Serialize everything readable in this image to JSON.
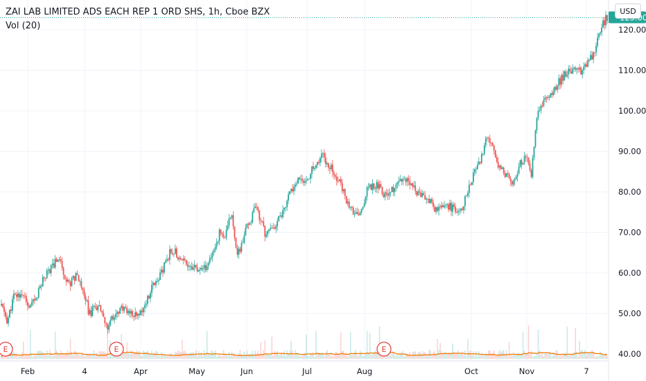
{
  "legend": {
    "title": "ZAI LAB LIMITED ADS EACH REP 1 ORD SHS, 1h, Cboe BZX",
    "volume": "Vol (20)"
  },
  "currency": "USD",
  "last_price_label": "123.00",
  "colors": {
    "up": "#26a69a",
    "down": "#ef5350",
    "grid": "#f0f3fa",
    "volume_ma": "#f57c00",
    "earnings": "#e53935",
    "last_price": "#26a69a"
  },
  "chart_data": {
    "type": "candlestick",
    "title": "ZAI LAB LIMITED ADS EACH REP 1 ORD SHS, 1h, Cboe BZX",
    "y_axis": {
      "min": 40,
      "max": 120,
      "ticks": [
        "40.00",
        "50.00",
        "60.00",
        "70.00",
        "80.00",
        "90.00",
        "100.00",
        "110.00",
        "120.00"
      ],
      "side": "right"
    },
    "x_axis": {
      "ticks": [
        "Feb",
        "4",
        "Apr",
        "May",
        "Jun",
        "Jul",
        "Aug",
        "Oct",
        "Nov",
        "7"
      ]
    },
    "last_price": 123.0,
    "price_path": [
      [
        0,
        52
      ],
      [
        0.01,
        48
      ],
      [
        0.02,
        54
      ],
      [
        0.035,
        55
      ],
      [
        0.045,
        51
      ],
      [
        0.055,
        53
      ],
      [
        0.07,
        59
      ],
      [
        0.095,
        64
      ],
      [
        0.11,
        57
      ],
      [
        0.125,
        60
      ],
      [
        0.135,
        56
      ],
      [
        0.145,
        50
      ],
      [
        0.16,
        52
      ],
      [
        0.175,
        46
      ],
      [
        0.19,
        51
      ],
      [
        0.21,
        51
      ],
      [
        0.225,
        49
      ],
      [
        0.24,
        53
      ],
      [
        0.25,
        57
      ],
      [
        0.265,
        60
      ],
      [
        0.28,
        66
      ],
      [
        0.295,
        64
      ],
      [
        0.31,
        62
      ],
      [
        0.33,
        60
      ],
      [
        0.345,
        63
      ],
      [
        0.36,
        70
      ],
      [
        0.37,
        69
      ],
      [
        0.38,
        75
      ],
      [
        0.39,
        64
      ],
      [
        0.405,
        71
      ],
      [
        0.42,
        76
      ],
      [
        0.435,
        70
      ],
      [
        0.45,
        71
      ],
      [
        0.46,
        74
      ],
      [
        0.475,
        79
      ],
      [
        0.49,
        83
      ],
      [
        0.5,
        82
      ],
      [
        0.515,
        86
      ],
      [
        0.53,
        89
      ],
      [
        0.545,
        86
      ],
      [
        0.56,
        82
      ],
      [
        0.575,
        76
      ],
      [
        0.59,
        74
      ],
      [
        0.605,
        81
      ],
      [
        0.62,
        82
      ],
      [
        0.635,
        79
      ],
      [
        0.65,
        81
      ],
      [
        0.665,
        83
      ],
      [
        0.68,
        81
      ],
      [
        0.695,
        79
      ],
      [
        0.71,
        77
      ],
      [
        0.72,
        75
      ],
      [
        0.73,
        77
      ],
      [
        0.745,
        76
      ],
      [
        0.755,
        74
      ],
      [
        0.765,
        78
      ],
      [
        0.775,
        83
      ],
      [
        0.79,
        87
      ],
      [
        0.8,
        93
      ],
      [
        0.81,
        91
      ],
      [
        0.82,
        87
      ],
      [
        0.835,
        84
      ],
      [
        0.845,
        82
      ],
      [
        0.855,
        87
      ],
      [
        0.865,
        89
      ],
      [
        0.875,
        84
      ],
      [
        0.883,
        98
      ],
      [
        0.895,
        102
      ],
      [
        0.91,
        104
      ],
      [
        0.92,
        107
      ],
      [
        0.93,
        109
      ],
      [
        0.945,
        110
      ],
      [
        0.96,
        110
      ],
      [
        0.97,
        112
      ],
      [
        0.98,
        115
      ],
      [
        0.99,
        121
      ],
      [
        1.0,
        123
      ]
    ],
    "earnings_markers": [
      "E",
      "E",
      "E"
    ]
  }
}
